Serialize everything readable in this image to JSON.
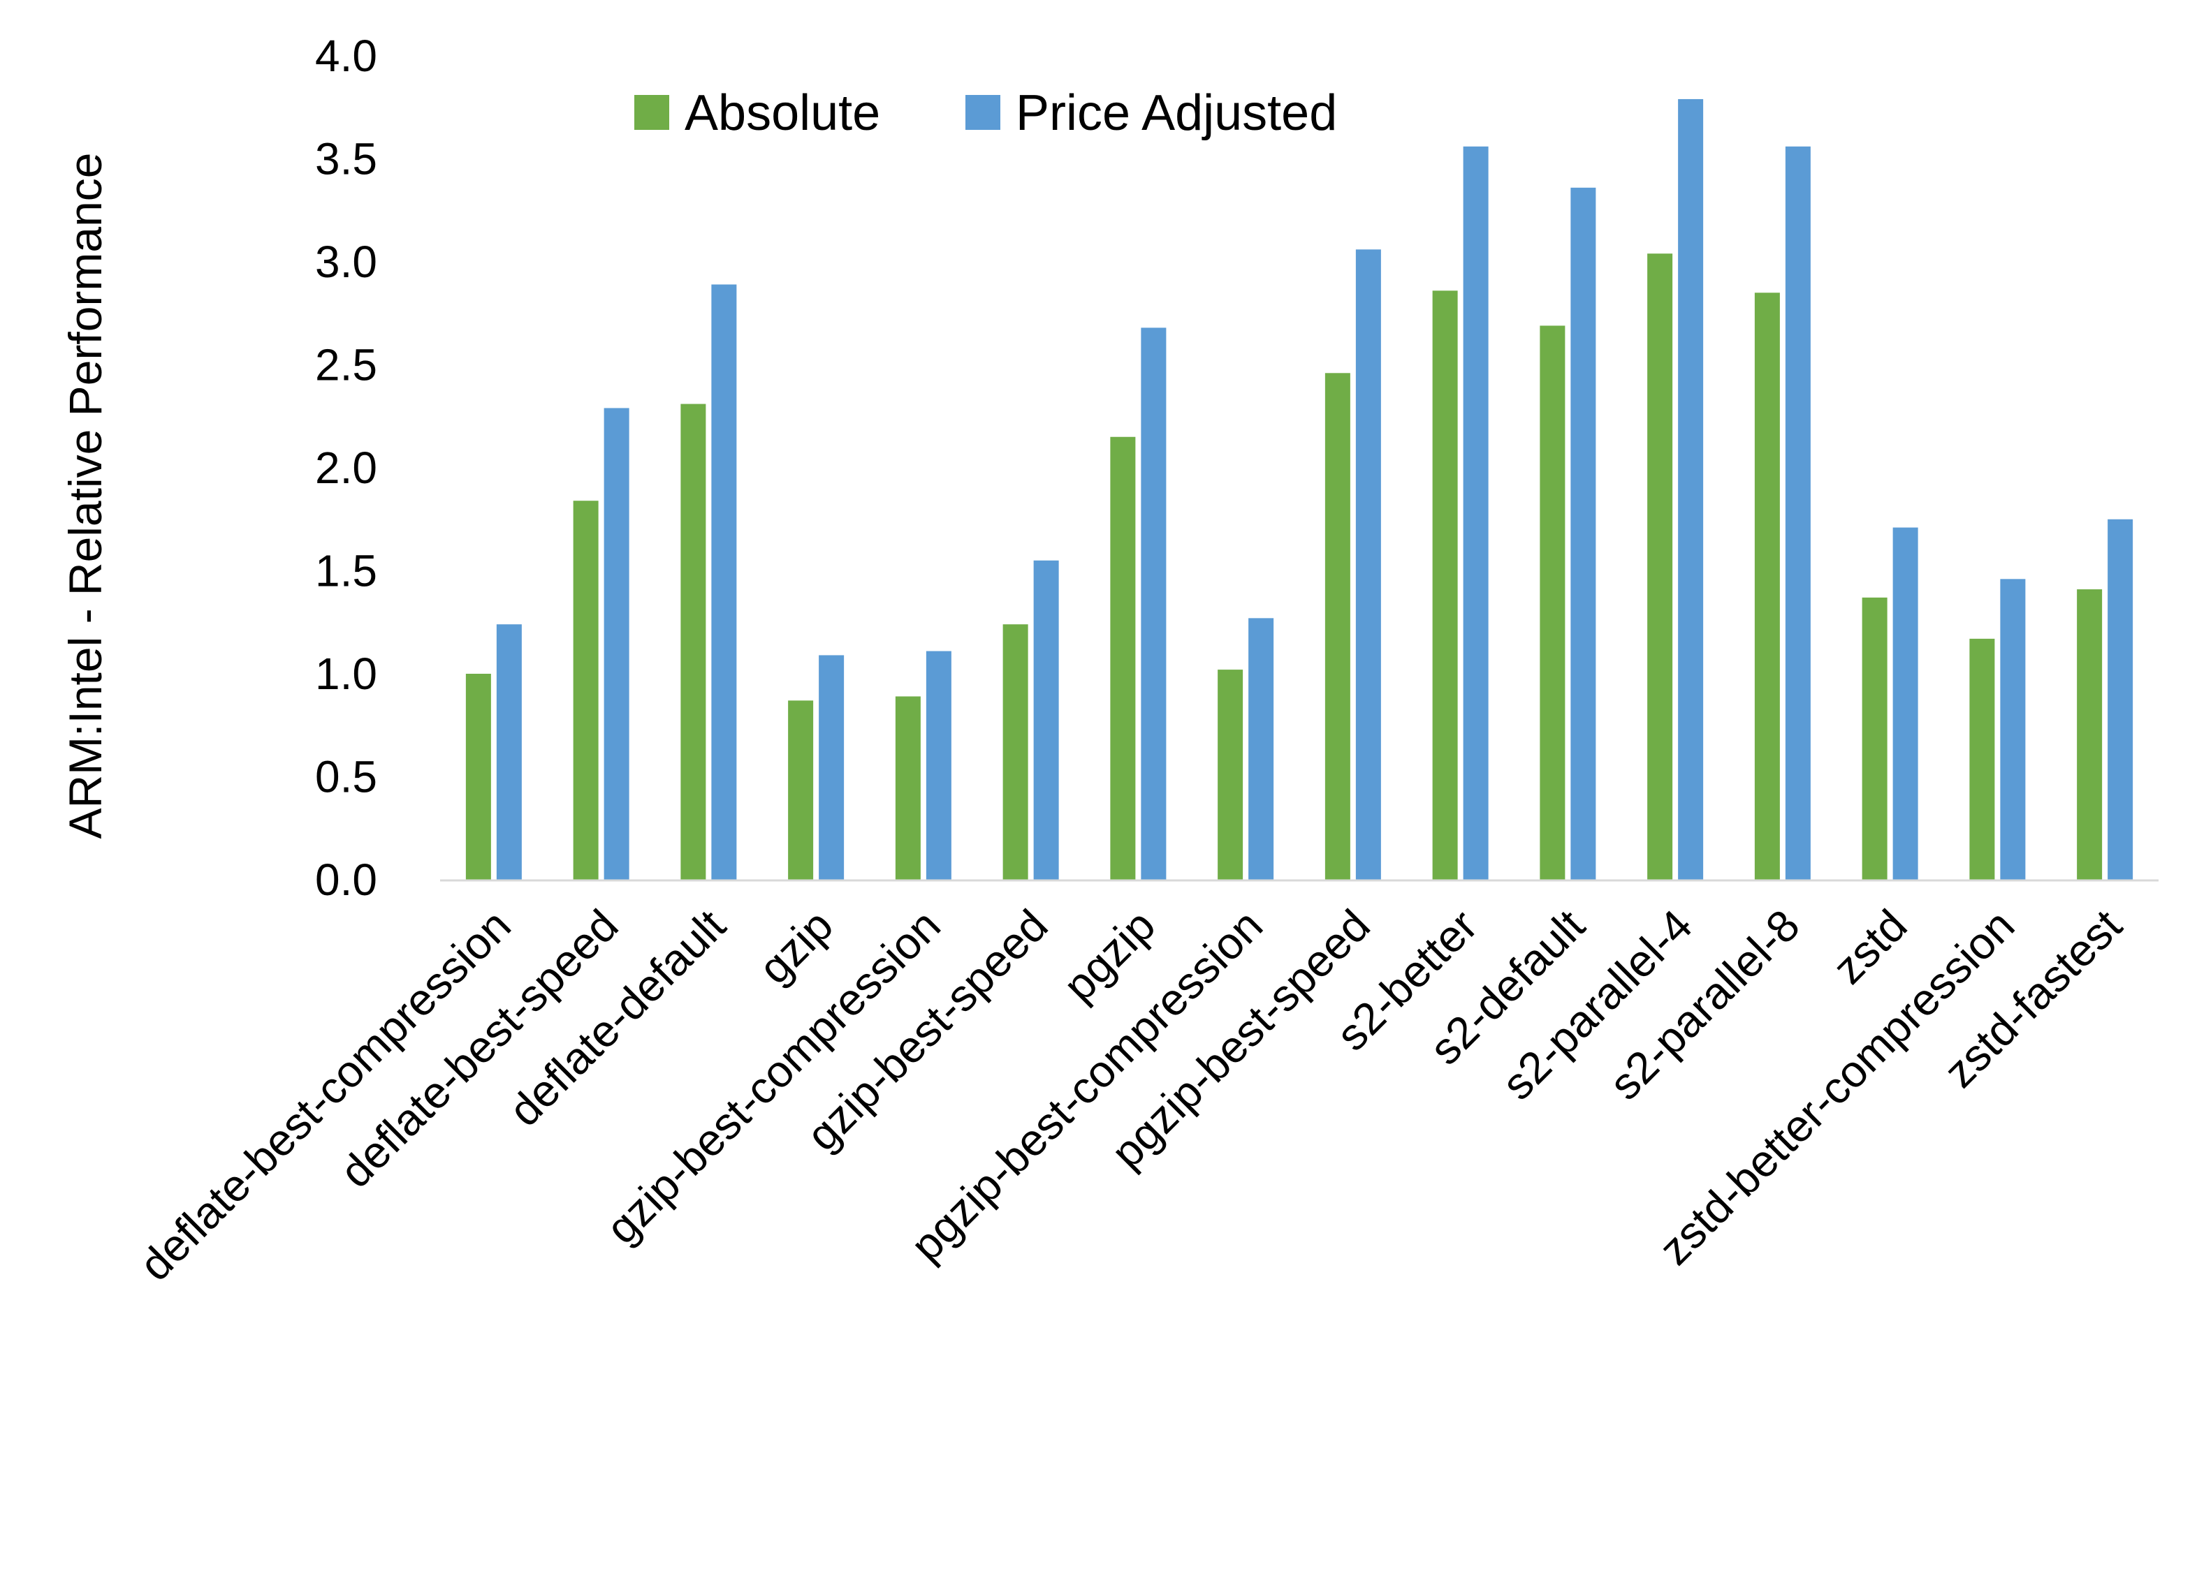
{
  "chart_data": {
    "type": "bar",
    "title": "",
    "xlabel": "",
    "ylabel": "ARM:Intel - Relative Performance",
    "ylim": [
      0,
      4.0
    ],
    "yticks": [
      "0.0",
      "0.5",
      "1.0",
      "1.5",
      "2.0",
      "2.5",
      "3.0",
      "3.5",
      "4.0"
    ],
    "grid": false,
    "legend_position": "top",
    "categories": [
      "deflate-best-compression",
      "deflate-best-speed",
      "deflate-default",
      "gzip",
      "gzip-best-compression",
      "gzip-best-speed",
      "pgzip",
      "pgzip-best-compression",
      "pgzip-best-speed",
      "s2-better",
      "s2-default",
      "s2-parallel-4",
      "s2-parallel-8",
      "zstd",
      "zstd-better-compression",
      "zstd-fastest"
    ],
    "series": [
      {
        "name": "Absolute",
        "color": "#70ad47",
        "values": [
          1.0,
          1.84,
          2.31,
          0.87,
          0.89,
          1.24,
          2.15,
          1.02,
          2.46,
          2.86,
          2.69,
          3.04,
          2.85,
          1.37,
          1.17,
          1.41
        ]
      },
      {
        "name": "Price Adjusted",
        "color": "#5b9bd5",
        "values": [
          1.24,
          2.29,
          2.89,
          1.09,
          1.11,
          1.55,
          2.68,
          1.27,
          3.06,
          3.56,
          3.36,
          3.79,
          3.56,
          1.71,
          1.46,
          1.75
        ]
      }
    ]
  }
}
